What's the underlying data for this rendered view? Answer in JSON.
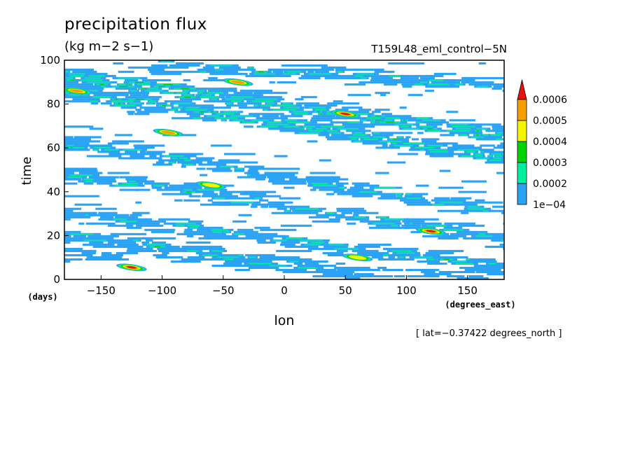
{
  "figure": {
    "title": "precipitation flux",
    "units": "(kg m−2 s−1)",
    "case_label": "T159L48_eml_control−5N",
    "location_note": "[ lat=−0.37422 degrees_north ]"
  },
  "chart_data": {
    "type": "heatmap",
    "xlabel": "lon",
    "xunits": "(degrees_east)",
    "ylabel": "time",
    "yunits": "(days)",
    "xlim": [
      -180,
      180
    ],
    "ylim": [
      0,
      100
    ],
    "xticks": [
      -150,
      -100,
      -50,
      0,
      50,
      100,
      150
    ],
    "xtick_labels": [
      "−150",
      "−100",
      "−50",
      "0",
      "50",
      "100",
      "150"
    ],
    "yticks": [
      0,
      20,
      40,
      60,
      80,
      100
    ],
    "ytick_labels": [
      "0",
      "20",
      "40",
      "60",
      "80",
      "100"
    ],
    "colorbar": {
      "levels": [
        0.0001,
        0.0002,
        0.0003,
        0.0004,
        0.0005,
        0.0006
      ],
      "labels": [
        "1e−04",
        "0.0002",
        "0.0003",
        "0.0004",
        "0.0005",
        "0.0006"
      ],
      "colors": [
        "#2aa3f5",
        "#00eea0",
        "#00d400",
        "#f5f500",
        "#f5a000",
        "#e81010"
      ],
      "extend": "max"
    },
    "bands": [
      {
        "lon_start": -180,
        "lon_end": 180,
        "time_start": 92,
        "time_end": 65,
        "level": "strong"
      },
      {
        "lon_start": -180,
        "lon_end": 180,
        "time_start": 85,
        "time_end": 55,
        "level": "strong"
      },
      {
        "lon_start": -120,
        "lon_end": 180,
        "time_start": 98,
        "time_end": 88,
        "level": "moderate"
      },
      {
        "lon_start": -180,
        "lon_end": 180,
        "time_start": 62,
        "time_end": 30,
        "level": "moderate"
      },
      {
        "lon_start": -180,
        "lon_end": 180,
        "time_start": 48,
        "time_end": 18,
        "level": "moderate"
      },
      {
        "lon_start": -180,
        "lon_end": 180,
        "time_start": 30,
        "time_end": 5,
        "level": "moderate"
      },
      {
        "lon_start": -180,
        "lon_end": 60,
        "time_start": 20,
        "time_end": 2,
        "level": "moderate"
      },
      {
        "lon_start": -180,
        "lon_end": 180,
        "time_start": 12,
        "time_end": 0,
        "level": "weak"
      }
    ],
    "peaks": [
      {
        "lon": 50,
        "time": 75.5,
        "value": 0.0006
      },
      {
        "lon": -95,
        "time": 67,
        "value": 0.00055
      },
      {
        "lon": -125,
        "time": 5.5,
        "value": 0.0006
      },
      {
        "lon": 120,
        "time": 22,
        "value": 0.0006
      },
      {
        "lon": -38,
        "time": 90,
        "value": 0.00055
      },
      {
        "lon": -170,
        "time": 86,
        "value": 0.0005
      },
      {
        "lon": -60,
        "time": 43,
        "value": 0.0004
      },
      {
        "lon": 60,
        "time": 10,
        "value": 0.0004
      }
    ]
  }
}
